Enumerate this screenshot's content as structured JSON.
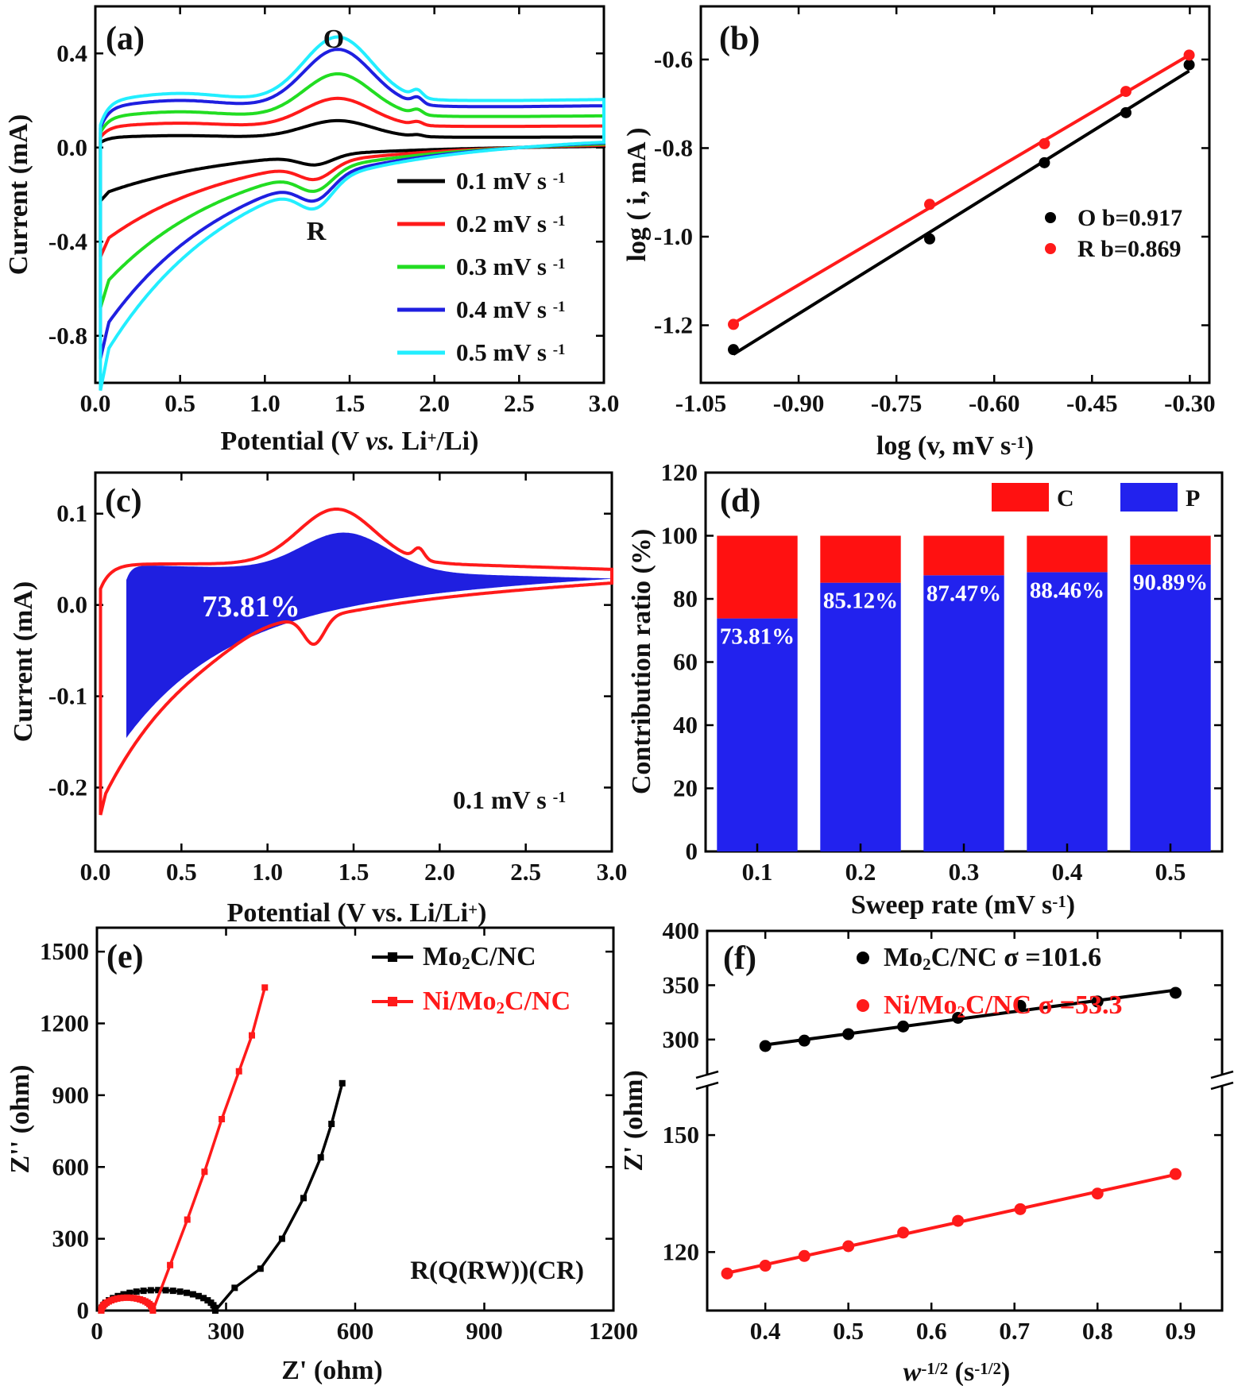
{
  "colors": {
    "black": "#000000",
    "red": "#ff1a1a",
    "green": "#22dd22",
    "blue": "#1f1fe0",
    "cyan": "#22eeff",
    "barRed": "#ff1111",
    "barBlue": "#2222ee"
  },
  "chart_data": [
    {
      "id": "a",
      "type": "line",
      "panel_label": "(a)",
      "xlabel_main": "Potential (V ",
      "xlabel_italic": "vs.",
      "xlabel_li": " Li",
      "xlabel_sup": "+",
      "xlabel_end": "/Li)",
      "ylabel": "Current (mA)",
      "xlim": [
        0,
        3.0
      ],
      "ylim": [
        -1.0,
        0.6
      ],
      "xticks": [
        0.0,
        0.5,
        1.0,
        1.5,
        2.0,
        2.5,
        3.0
      ],
      "xticklabels": [
        "0.0",
        "0.5",
        "1.0",
        "1.5",
        "2.0",
        "2.5",
        "3.0"
      ],
      "yticks": [
        0.4,
        0.0,
        -0.4,
        -0.8
      ],
      "yticklabels": [
        "0.4",
        "0.0",
        "-0.4",
        "-0.8"
      ],
      "annotations": {
        "O": "O",
        "R": "R"
      },
      "legend_unit": "mV s",
      "legend_sup": "-1",
      "series": [
        {
          "name": "0.1",
          "color": "#000000",
          "scale": 0.22,
          "peakO": 0.11,
          "peakR": -0.09
        },
        {
          "name": "0.2",
          "color": "#ff1a1a",
          "scale": 0.45,
          "peakO": 0.2,
          "peakR": -0.15
        },
        {
          "name": "0.3",
          "color": "#22dd22",
          "scale": 0.66,
          "peakO": 0.3,
          "peakR": -0.19
        },
        {
          "name": "0.4",
          "color": "#1f1fe0",
          "scale": 0.87,
          "peakO": 0.4,
          "peakR": -0.21
        },
        {
          "name": "0.5",
          "color": "#22eeff",
          "scale": 1.0,
          "peakO": 0.45,
          "peakR": -0.24
        }
      ]
    },
    {
      "id": "b",
      "type": "scatter",
      "panel_label": "(b)",
      "xlabel": "log (v, mV s",
      "xlabel_sup": "-1",
      "xlabel_end": ")",
      "ylabel": "log ( i, mA )",
      "xlim": [
        -1.05,
        -0.27
      ],
      "ylim": [
        -1.33,
        -0.48
      ],
      "xticks": [
        -1.05,
        -0.9,
        -0.75,
        -0.6,
        -0.45,
        -0.3
      ],
      "xticklabels": [
        "-1.05",
        "-0.90",
        "-0.75",
        "-0.60",
        "-0.45",
        "-0.30"
      ],
      "yticks": [
        -0.6,
        -0.8,
        -1.0,
        -1.2
      ],
      "yticklabels": [
        "-0.6",
        "-0.8",
        "-1.0",
        "-1.2"
      ],
      "series": [
        {
          "name": "O  b=0.917",
          "color": "#000000",
          "x": [
            -1.0,
            -0.699,
            -0.523,
            -0.398,
            -0.301
          ],
          "y": [
            -1.255,
            -1.005,
            -0.833,
            -0.72,
            -0.612
          ]
        },
        {
          "name": "R  b=0.869",
          "color": "#ff1a1a",
          "x": [
            -1.0,
            -0.699,
            -0.523,
            -0.398,
            -0.301
          ],
          "y": [
            -1.198,
            -0.927,
            -0.79,
            -0.672,
            -0.59
          ]
        }
      ]
    },
    {
      "id": "c",
      "type": "area",
      "panel_label": "(c)",
      "xlabel": "Potential (V vs. Li/Li",
      "xlabel_sup": "+",
      "xlabel_end": ")",
      "ylabel": "Current (mA)",
      "xlim": [
        0,
        3.0
      ],
      "ylim": [
        -0.27,
        0.145
      ],
      "xticks": [
        0.0,
        0.5,
        1.0,
        1.5,
        2.0,
        2.5,
        3.0
      ],
      "xticklabels": [
        "0.0",
        "0.5",
        "1.0",
        "1.5",
        "2.0",
        "2.5",
        "3.0"
      ],
      "yticks": [
        0.1,
        0.0,
        -0.1,
        -0.2
      ],
      "yticklabels": [
        "0.1",
        "0.0",
        "-0.1",
        "-0.2"
      ],
      "area_label": "73.81%",
      "rate_text": "0.1 mV s",
      "rate_sup": "-1"
    },
    {
      "id": "d",
      "type": "bar",
      "panel_label": "(d)",
      "xlabel": "Sweep rate (mV s",
      "xlabel_sup": "-1",
      "xlabel_end": ")",
      "ylabel": "Contribution ratio (%)",
      "ylim": [
        0,
        120
      ],
      "yticks": [
        0,
        20,
        40,
        60,
        80,
        100,
        120
      ],
      "yticklabels": [
        "0",
        "20",
        "40",
        "60",
        "80",
        "100",
        "120"
      ],
      "categories": [
        "0.1",
        "0.2",
        "0.3",
        "0.4",
        "0.5"
      ],
      "series": [
        {
          "name": "P",
          "color": "#2222ee",
          "values": [
            73.81,
            85.12,
            87.47,
            88.46,
            90.89
          ]
        },
        {
          "name": "C",
          "color": "#ff1111",
          "values": [
            26.19,
            14.88,
            12.53,
            11.54,
            9.11
          ]
        }
      ],
      "value_labels": [
        "73.81%",
        "85.12%",
        "87.47%",
        "88.46%",
        "90.89%"
      ]
    },
    {
      "id": "e",
      "type": "line",
      "panel_label": "(e)",
      "xlabel": "Z' (ohm)",
      "ylabel": "Z'' (ohm)",
      "xlim": [
        0,
        1200
      ],
      "ylim": [
        0,
        1600
      ],
      "xticks": [
        0,
        300,
        600,
        900,
        1200
      ],
      "xticklabels": [
        "0",
        "300",
        "600",
        "900",
        "1200"
      ],
      "yticks": [
        0,
        300,
        600,
        900,
        1200,
        1500
      ],
      "yticklabels": [
        "0",
        "300",
        "600",
        "900",
        "1200",
        "1500"
      ],
      "circuit_label": "R(Q(RW))(CR)",
      "series": [
        {
          "name_pre": "Mo",
          "name_sub": "2",
          "name_post": "C/NC",
          "color": "#000000",
          "semicircle": {
            "start": 10,
            "end": 275,
            "height": 95
          },
          "tail": {
            "x": [
              275,
              320,
              380,
              430,
              480,
              520,
              545,
              570
            ],
            "y": [
              55,
              95,
              175,
              300,
              470,
              640,
              780,
              950
            ]
          }
        },
        {
          "name_pre": "Ni/Mo",
          "name_sub": "2",
          "name_post": "C/NC",
          "color": "#ff1a1a",
          "semicircle": {
            "start": 10,
            "end": 130,
            "height": 60
          },
          "tail": {
            "x": [
              130,
              170,
              210,
              250,
              290,
              330,
              360,
              390
            ],
            "y": [
              38,
              190,
              380,
              580,
              800,
              1000,
              1150,
              1350
            ]
          }
        }
      ]
    },
    {
      "id": "f",
      "type": "scatter",
      "panel_label": "(f)",
      "xlabel_italic": "w",
      "xlabel_sup": "-1/2",
      "xlabel_end": " (s",
      "xlabel_sup2": "-1/2",
      "xlabel_close": ")",
      "ylabel": "Z' (ohm)",
      "xlim": [
        0.33,
        0.95
      ],
      "axis_break": true,
      "upper_ylim": [
        275,
        400
      ],
      "lower_ylim": [
        105,
        160
      ],
      "xticks": [
        0.4,
        0.5,
        0.6,
        0.7,
        0.8,
        0.9
      ],
      "xticklabels": [
        "0.4",
        "0.5",
        "0.6",
        "0.7",
        "0.8",
        "0.9"
      ],
      "upper_yticks": [
        300,
        350,
        400
      ],
      "upper_yticklabels": [
        "300",
        "350",
        "400"
      ],
      "lower_yticks": [
        120,
        150
      ],
      "lower_yticklabels": [
        "120",
        "150"
      ],
      "series": [
        {
          "name_pre": "Mo",
          "name_sub": "2",
          "name_post": "C/NC σ =101.6",
          "color": "#000000",
          "segment": "upper",
          "x": [
            0.4,
            0.447,
            0.5,
            0.566,
            0.632,
            0.707,
            0.8,
            0.894
          ],
          "y": [
            294,
            299,
            305,
            312,
            320,
            331,
            335,
            343
          ]
        },
        {
          "name_pre": "Ni/Mo",
          "name_sub": "2",
          "name_post": "C/NC σ =53.3",
          "color": "#ff1a1a",
          "segment": "lower",
          "x": [
            0.354,
            0.4,
            0.447,
            0.5,
            0.566,
            0.632,
            0.707,
            0.8,
            0.894
          ],
          "y": [
            114.5,
            116.5,
            119,
            121.5,
            125,
            128,
            131,
            135,
            140
          ]
        }
      ]
    }
  ]
}
